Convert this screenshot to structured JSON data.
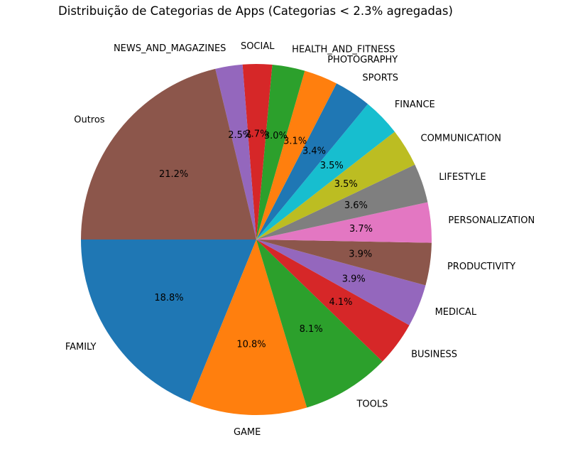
{
  "chart_data": {
    "type": "pie",
    "title": "Distribuição de Categorias de Apps (Categorias < 2.3% agregadas)",
    "slices": [
      {
        "label": "FAMILY",
        "value": 18.8,
        "pct_label": "18.8%",
        "color": "#1f77b4"
      },
      {
        "label": "GAME",
        "value": 10.8,
        "pct_label": "10.8%",
        "color": "#ff7f0e"
      },
      {
        "label": "TOOLS",
        "value": 8.1,
        "pct_label": "8.1%",
        "color": "#2ca02c"
      },
      {
        "label": "BUSINESS",
        "value": 4.1,
        "pct_label": "4.1%",
        "color": "#d62728"
      },
      {
        "label": "MEDICAL",
        "value": 3.9,
        "pct_label": "3.9%",
        "color": "#9467bd"
      },
      {
        "label": "PRODUCTIVITY",
        "value": 3.9,
        "pct_label": "3.9%",
        "color": "#8c564b"
      },
      {
        "label": "PERSONALIZATION",
        "value": 3.7,
        "pct_label": "3.7%",
        "color": "#e377c2"
      },
      {
        "label": "LIFESTYLE",
        "value": 3.6,
        "pct_label": "3.6%",
        "color": "#7f7f7f"
      },
      {
        "label": "COMMUNICATION",
        "value": 3.5,
        "pct_label": "3.5%",
        "color": "#bcbd22"
      },
      {
        "label": "FINANCE",
        "value": 3.5,
        "pct_label": "3.5%",
        "color": "#17becf"
      },
      {
        "label": "SPORTS",
        "value": 3.4,
        "pct_label": "3.4%",
        "color": "#1f77b4"
      },
      {
        "label": "PHOTOGRAPHY",
        "value": 3.1,
        "pct_label": "3.1%",
        "color": "#ff7f0e"
      },
      {
        "label": "HEALTH_AND_FITNESS",
        "value": 3.0,
        "pct_label": "3.0%",
        "color": "#2ca02c"
      },
      {
        "label": "SOCIAL",
        "value": 2.7,
        "pct_label": "2.7%",
        "color": "#d62728"
      },
      {
        "label": "NEWS_AND_MAGAZINES",
        "value": 2.5,
        "pct_label": "2.5%",
        "color": "#9467bd"
      },
      {
        "label": "Outros",
        "value": 21.2,
        "pct_label": "21.2%",
        "color": "#8c564b"
      }
    ]
  }
}
